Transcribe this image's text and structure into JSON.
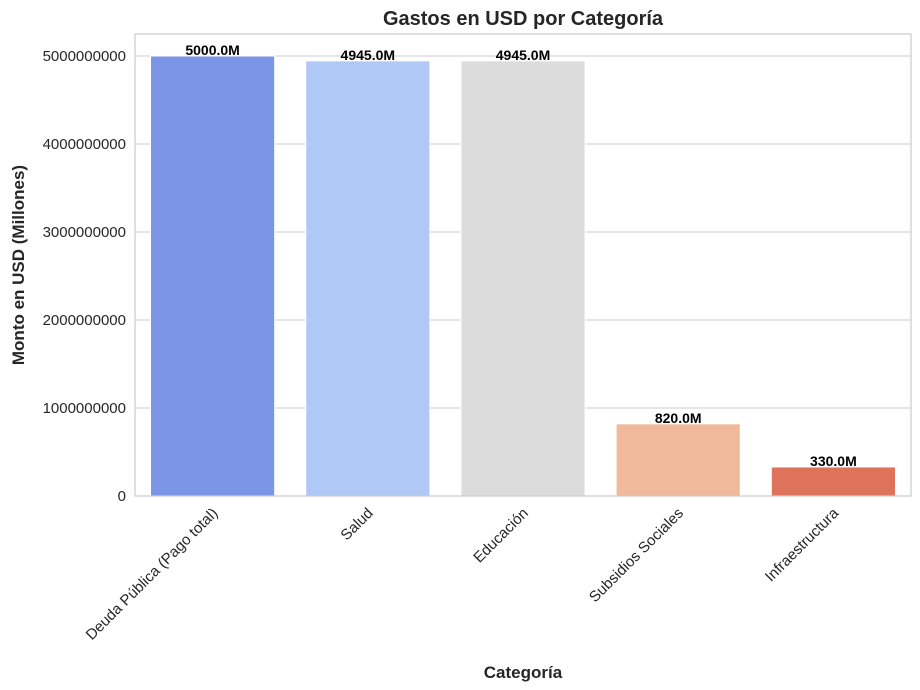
{
  "chart_data": {
    "type": "bar",
    "title": "Gastos en USD por Categoría",
    "xlabel": "Categoría",
    "ylabel": "Monto en USD (Millones)",
    "categories": [
      "Deuda Pública (Pago total)",
      "Salud",
      "Educación",
      "Subsidios Sociales",
      "Infraestructura"
    ],
    "values": [
      5000000000,
      4945000000,
      4945000000,
      820000000,
      330000000
    ],
    "data_labels": [
      "5000.0M",
      "4945.0M",
      "4945.0M",
      "820.0M",
      "330.0M"
    ],
    "colors": [
      "#7b96e6",
      "#b0c8f5",
      "#dcdcdc",
      "#f0b99c",
      "#dc735a"
    ],
    "ylim": [
      0,
      5250000000
    ],
    "yticks": [
      0,
      1000000000,
      2000000000,
      3000000000,
      4000000000,
      5000000000
    ],
    "ytick_labels": [
      "0",
      "1000000000",
      "2000000000",
      "3000000000",
      "4000000000",
      "5000000000"
    ],
    "grid": "horizontal",
    "legend": "none"
  }
}
